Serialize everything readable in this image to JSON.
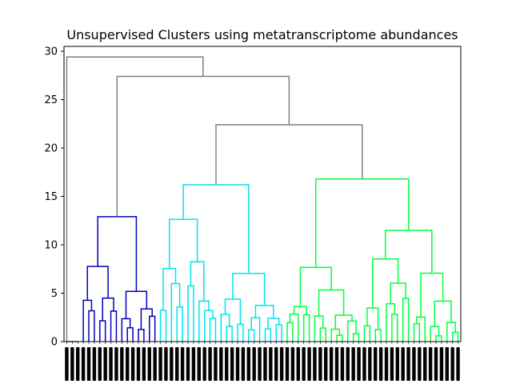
{
  "chart_data": {
    "type": "dendrogram",
    "title": "Unsupervised Clusters using metatranscriptome abundances",
    "xlabel": "",
    "ylabel": "",
    "ylim": [
      0,
      30.5
    ],
    "yticks": [
      0,
      5,
      10,
      15,
      20,
      25,
      30
    ],
    "grid": false,
    "legend": "none",
    "colors": {
      "above_threshold": "#808080",
      "cluster_blue": "#0000c0",
      "cluster_cyan": "#00e5ee",
      "cluster_green": "#00ff40"
    },
    "clusters": [
      {
        "name": "cluster-blue",
        "color": "#0000c0",
        "leaf_range": [
          3,
          17
        ],
        "merge_height": 12.9
      },
      {
        "name": "cluster-cyan",
        "color": "#00e5ee",
        "leaf_range": [
          17,
          40
        ],
        "merge_height": 16.2
      },
      {
        "name": "cluster-green",
        "color": "#00ff40",
        "leaf_range": [
          40,
          72
        ],
        "merge_height": 16.8
      }
    ],
    "top_merges": [
      {
        "left": "cyan",
        "right": "green",
        "height": 22.4
      },
      {
        "left": "blue",
        "right": "cyan+green",
        "height": 27.4
      },
      {
        "left": "outlier",
        "right": "rest",
        "height": 29.4
      }
    ]
  }
}
